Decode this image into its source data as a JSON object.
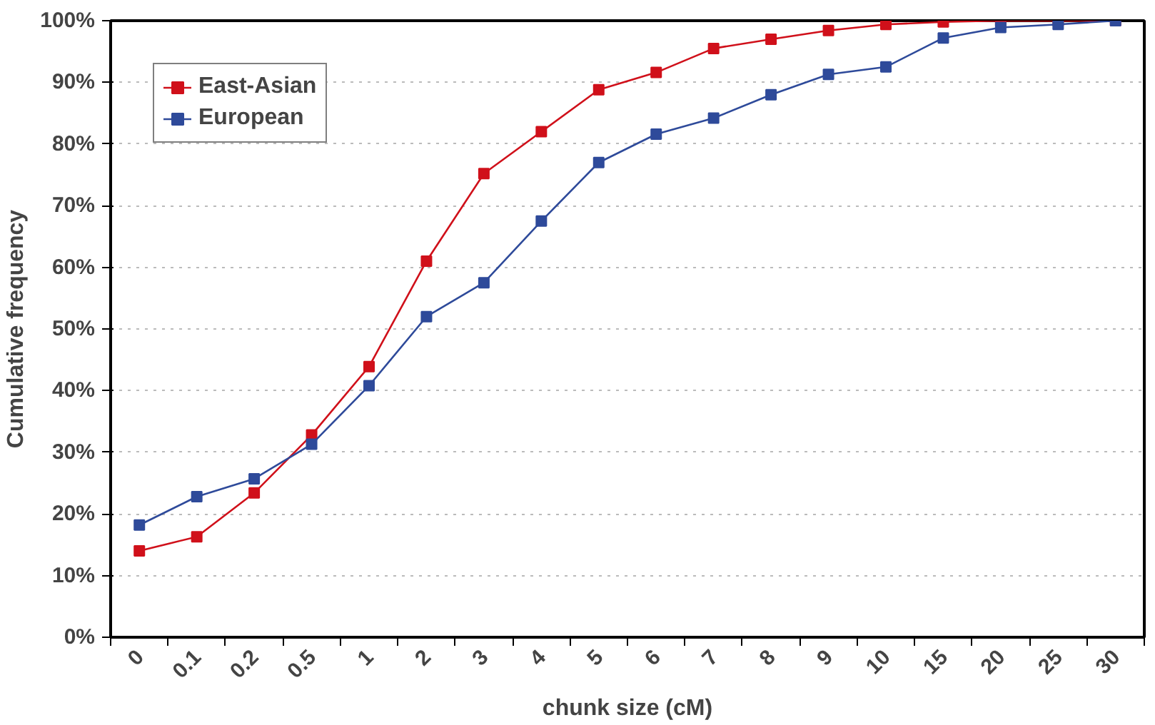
{
  "chart_data": {
    "type": "line",
    "xlabel": "chunk size (cM)",
    "ylabel": "Cumulative frequency",
    "categories": [
      "0",
      "0.1",
      "0.2",
      "0.5",
      "1",
      "2",
      "3",
      "4",
      "5",
      "6",
      "7",
      "8",
      "9",
      "10",
      "15",
      "20",
      "25",
      "30"
    ],
    "ylim": [
      0,
      100
    ],
    "yticks": [
      {
        "value": 0,
        "label": "0%"
      },
      {
        "value": 10,
        "label": "10%"
      },
      {
        "value": 20,
        "label": "20%"
      },
      {
        "value": 30,
        "label": "30%"
      },
      {
        "value": 40,
        "label": "40%"
      },
      {
        "value": 50,
        "label": "50%"
      },
      {
        "value": 60,
        "label": "60%"
      },
      {
        "value": 70,
        "label": "70%"
      },
      {
        "value": 80,
        "label": "80%"
      },
      {
        "value": 90,
        "label": "90%"
      },
      {
        "value": 100,
        "label": "100%"
      }
    ],
    "series": [
      {
        "name": "East-Asian",
        "color": "#d0101a",
        "values": [
          14.0,
          16.3,
          23.4,
          32.8,
          43.9,
          61,
          75.2,
          82,
          88.8,
          91.6,
          95.5,
          97,
          98.4,
          99.4,
          99.8,
          100,
          100,
          100
        ]
      },
      {
        "name": "European",
        "color": "#2e4a9a",
        "values": [
          18.2,
          22.8,
          25.7,
          31.3,
          40.8,
          52,
          57.5,
          67.5,
          77,
          81.6,
          84.2,
          88,
          91.3,
          92.5,
          97.2,
          98.9,
          99.4,
          100
        ]
      }
    ],
    "marker": "square",
    "line_style": "solid",
    "grid": "y",
    "legend": "top left"
  }
}
